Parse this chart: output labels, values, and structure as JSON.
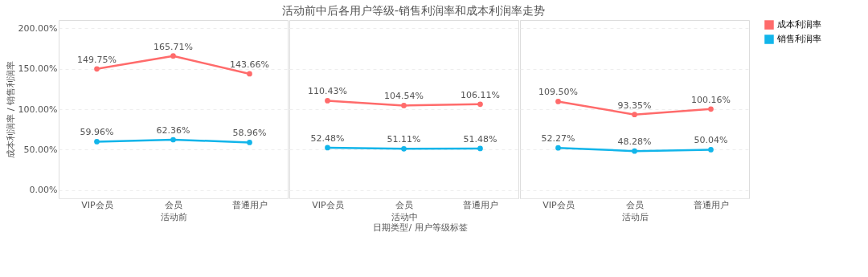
{
  "chart_data": [
    {
      "type": "line",
      "legend": "top right",
      "ylabel": "成本利润率 / 销售利润率",
      "xlabel": "活动前",
      "categories": [
        "VIP会员",
        "会员",
        "普通用户"
      ],
      "ylim": [
        -10,
        210
      ],
      "yticks": [
        {
          "value": 0,
          "label": "0.00%"
        },
        {
          "value": 50,
          "label": "50.00%"
        },
        {
          "value": 100,
          "label": "100.00%"
        },
        {
          "value": 150,
          "label": "150.00%"
        },
        {
          "value": 200,
          "label": "200.00%"
        }
      ],
      "grid": "y",
      "marker": "circle",
      "series": [
        {
          "name": "成本利润率",
          "color": "#ff6b6b",
          "values": [
            149.75,
            165.71,
            143.66
          ],
          "value_labels": [
            "149.75%",
            "165.71%",
            "143.66%"
          ]
        },
        {
          "name": "销售利润率",
          "color": "#12b5ea",
          "values": [
            59.96,
            62.36,
            58.96
          ],
          "value_labels": [
            "59.96%",
            "62.36%",
            "58.96%"
          ]
        }
      ]
    },
    {
      "type": "line",
      "title": "活动前中后各用户等级-销售利润率和成本利润率走势",
      "legend": "top right",
      "xlabel": "活动中",
      "categories": [
        "VIP会员",
        "会员",
        "普通用户"
      ],
      "ylim": [
        -10,
        210
      ],
      "yticks": [
        {
          "value": 0,
          "label": null
        },
        {
          "value": 50,
          "label": null
        },
        {
          "value": 100,
          "label": null
        },
        {
          "value": 150,
          "label": null
        },
        {
          "value": 200,
          "label": null
        }
      ],
      "grid": "y",
      "marker": "circle",
      "tick_labels": "x",
      "annotations": [
        "日期类型/ 用户等级标签"
      ],
      "series": [
        {
          "name": "成本利润率",
          "color": "#ff6b6b",
          "values": [
            110.43,
            104.54,
            106.11
          ],
          "value_labels": [
            "110.43%",
            "104.54%",
            "106.11%"
          ]
        },
        {
          "name": "销售利润率",
          "color": "#12b5ea",
          "values": [
            52.48,
            51.11,
            51.48
          ],
          "value_labels": [
            "52.48%",
            "51.11%",
            "51.48%"
          ]
        }
      ]
    },
    {
      "type": "line",
      "xlabel": "活动后",
      "categories": [
        "VIP会员",
        "会员",
        "普通用户"
      ],
      "ylim": [
        -10,
        210
      ],
      "yticks": [
        {
          "value": 0,
          "label": null
        },
        {
          "value": 50,
          "label": null
        },
        {
          "value": 100,
          "label": null
        },
        {
          "value": 150,
          "label": null
        },
        {
          "value": 200,
          "label": null
        }
      ],
      "grid": "y",
      "marker": "circle",
      "tick_labels": "x",
      "legend": "top right",
      "series": [
        {
          "name": "成本利润率",
          "color": "#ff6b6b",
          "values": [
            109.5,
            93.35,
            100.16
          ],
          "value_labels": [
            "109.50%",
            "93.35%",
            "100.16%"
          ]
        },
        {
          "name": "销售利润率",
          "color": "#12b5ea",
          "values": [
            52.27,
            48.28,
            50.04
          ],
          "value_labels": [
            "52.27%",
            "48.28%",
            "50.04%"
          ]
        }
      ]
    }
  ]
}
